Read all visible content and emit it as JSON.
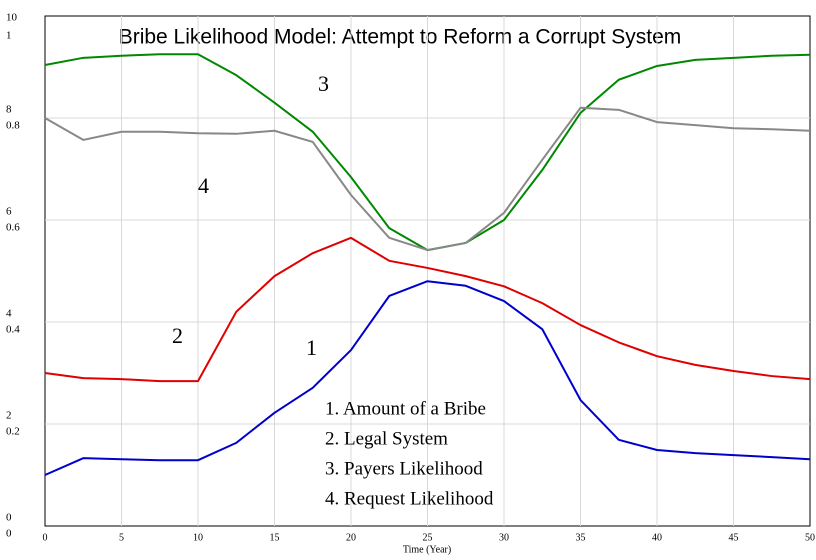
{
  "chart_data": {
    "type": "line",
    "title": "Bribe Likelihood Model: Attempt to Reform a Corrupt System",
    "x_label": "Time (Year)",
    "x": [
      0,
      2.5,
      5,
      7.5,
      10,
      12.5,
      15,
      17.5,
      20,
      22.5,
      25,
      27.5,
      30,
      32.5,
      35,
      37.5,
      40,
      42.5,
      45,
      47.5,
      50
    ],
    "xlim": [
      0,
      50
    ],
    "xticks": [
      0,
      5,
      10,
      15,
      20,
      25,
      30,
      35,
      40,
      45,
      50
    ],
    "ylim": [
      0,
      1
    ],
    "yticks": [
      0,
      0.2,
      0.4,
      0.6,
      0.8,
      1
    ],
    "y2lim": [
      0,
      10
    ],
    "y2ticks": [
      0,
      2,
      4,
      6,
      8,
      10
    ],
    "grid": true,
    "series": [
      {
        "name": "1. Amount of a Bribe",
        "label": "1",
        "color": "#0000cc",
        "axis": "y2",
        "values": [
          1.0,
          1.33,
          1.31,
          1.29,
          1.29,
          1.63,
          2.22,
          2.71,
          3.45,
          4.51,
          4.8,
          4.71,
          4.41,
          3.86,
          2.47,
          1.69,
          1.49,
          1.43,
          1.39,
          1.35,
          1.31
        ]
      },
      {
        "name": "2. Legal System",
        "label": "2",
        "color": "#e00000",
        "values": [
          0.3,
          0.29,
          0.288,
          0.284,
          0.284,
          0.42,
          0.49,
          0.535,
          0.565,
          0.52,
          0.506,
          0.49,
          0.47,
          0.437,
          0.394,
          0.36,
          0.333,
          0.316,
          0.304,
          0.294,
          0.288
        ]
      },
      {
        "name": "3. Payers Likelihood",
        "label": "3",
        "color": "#008800",
        "values": [
          0.904,
          0.918,
          0.922,
          0.925,
          0.925,
          0.884,
          0.83,
          0.773,
          0.684,
          0.584,
          0.541,
          0.555,
          0.6,
          0.698,
          0.81,
          0.875,
          0.902,
          0.914,
          0.918,
          0.922,
          0.924
        ]
      },
      {
        "name": "4. Request Likelihood",
        "label": "4",
        "color": "#888888",
        "values": [
          0.8,
          0.757,
          0.773,
          0.773,
          0.77,
          0.769,
          0.775,
          0.753,
          0.649,
          0.565,
          0.541,
          0.555,
          0.614,
          0.718,
          0.82,
          0.816,
          0.792,
          0.786,
          0.78,
          0.778,
          0.775
        ]
      }
    ]
  }
}
